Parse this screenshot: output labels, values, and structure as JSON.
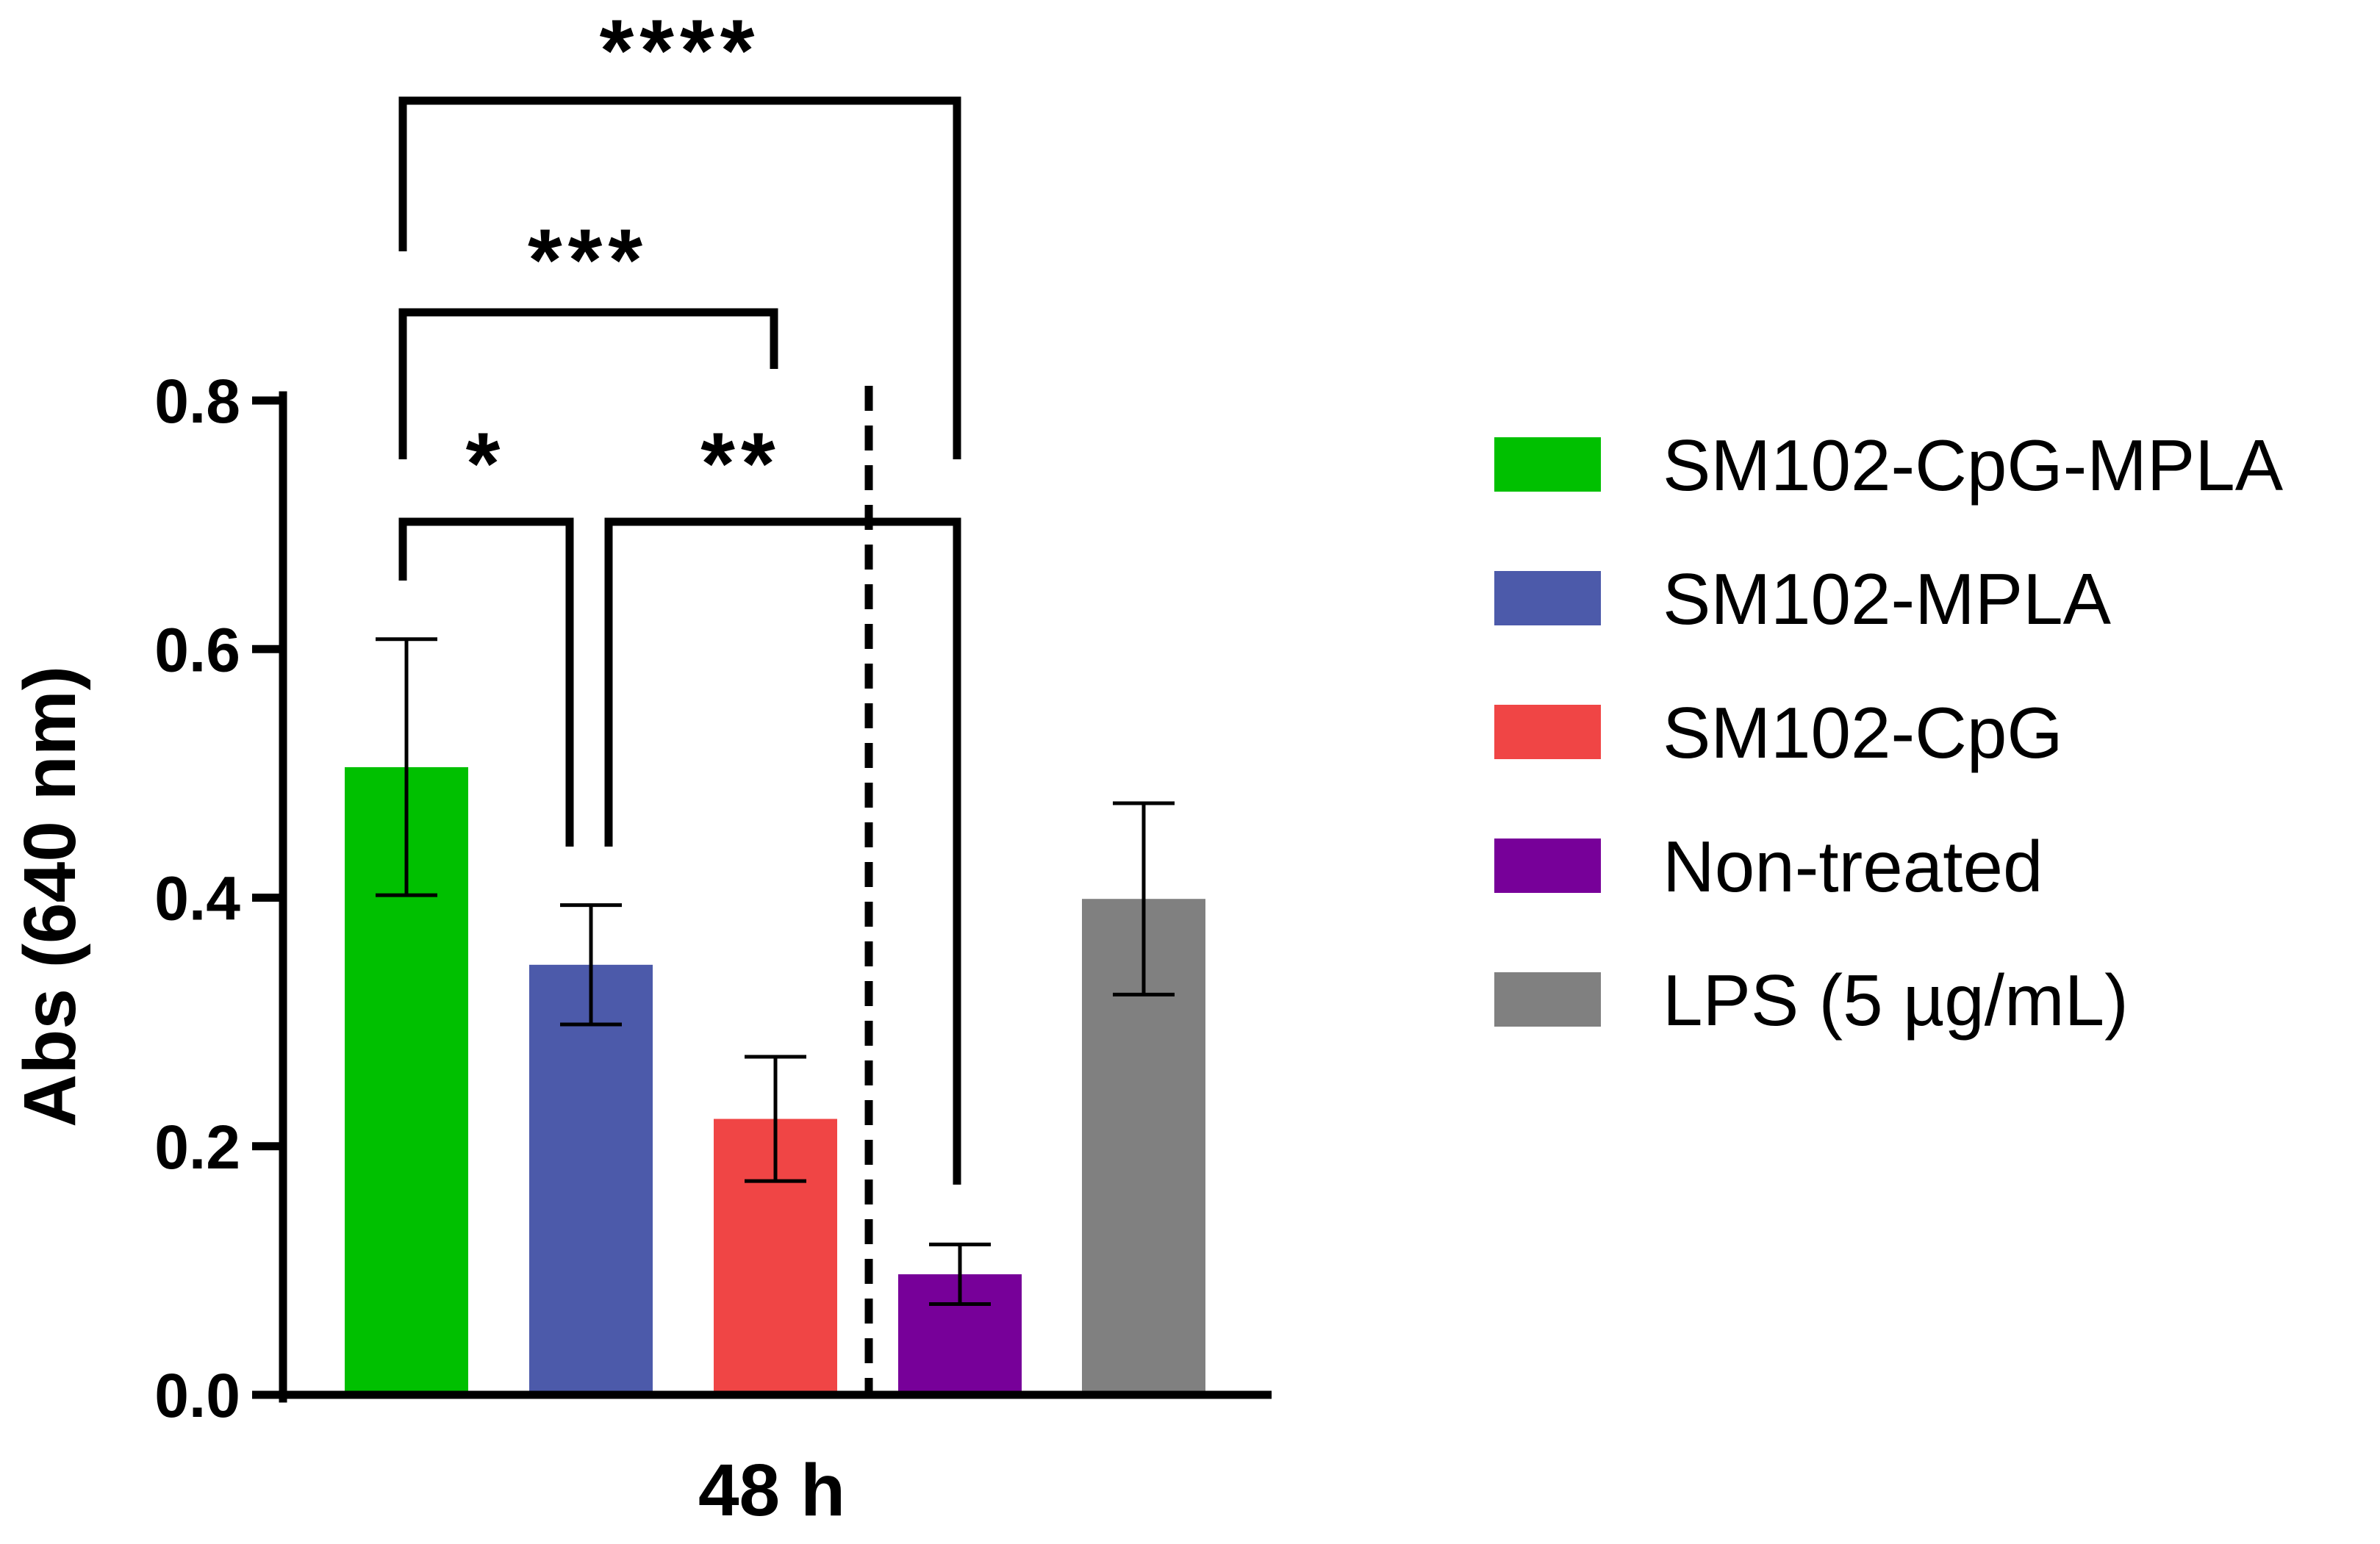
{
  "chart_data": {
    "type": "bar",
    "title": "",
    "xlabel": "48 h",
    "ylabel": "Abs (640 nm)",
    "ylim": [
      0,
      0.8
    ],
    "yticks": [
      "0.0",
      "0.2",
      "0.4",
      "0.6",
      "0.8"
    ],
    "grid": false,
    "legend_position": "right",
    "series": [
      {
        "name": "SM102-CpG-MPLA",
        "value": 0.505,
        "error": 0.103,
        "color": "#00c000"
      },
      {
        "name": "SM102-MPLA",
        "value": 0.346,
        "error": 0.048,
        "color": "#4c5aaa"
      },
      {
        "name": "SM102-CpG",
        "value": 0.222,
        "error": 0.05,
        "color": "#f04545"
      },
      {
        "name": "Non-treated",
        "value": 0.097,
        "error": 0.024,
        "color": "#770099"
      },
      {
        "name": "LPS (5 µg/mL)",
        "value": 0.399,
        "error": 0.077,
        "color": "#808080"
      }
    ],
    "divider": {
      "between": [
        "SM102-CpG",
        "Non-treated"
      ],
      "style": "dashed"
    },
    "significance": [
      {
        "from": "SM102-CpG-MPLA",
        "to": "SM102-MPLA",
        "label": "*"
      },
      {
        "from": "SM102-MPLA",
        "to": "Non-treated",
        "label": "**"
      },
      {
        "from": "SM102-CpG-MPLA",
        "to": "SM102-CpG",
        "label": "***"
      },
      {
        "from": "SM102-CpG-MPLA",
        "to": "Non-treated",
        "label": "****"
      }
    ]
  }
}
